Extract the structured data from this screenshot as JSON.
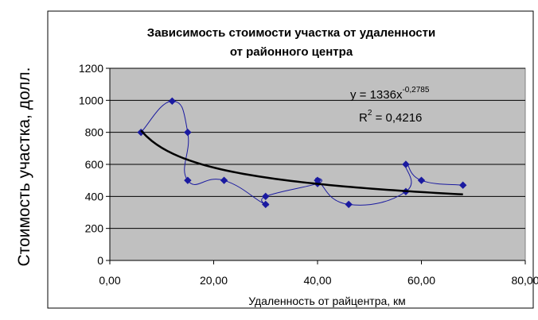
{
  "chart_data": {
    "type": "scatter",
    "title": [
      "Зависимость стоимости участка от удаленности",
      "от районного центра"
    ],
    "xlabel": "Удаленность от райцентра, км",
    "ylabel": "Стоимость участка, долл.",
    "xlim": [
      0,
      80
    ],
    "ylim": [
      0,
      1200
    ],
    "x_ticks": [
      0,
      20,
      40,
      60,
      80
    ],
    "x_tick_labels": [
      "0,00",
      "20,00",
      "40,00",
      "60,00",
      "80,00"
    ],
    "y_ticks": [
      0,
      200,
      400,
      600,
      800,
      1000,
      1200
    ],
    "y_tick_labels": [
      "0",
      "200",
      "400",
      "600",
      "800",
      "1000",
      "1200"
    ],
    "grid": true,
    "series": [
      {
        "type": "scatter-smooth",
        "color": "#1a1aa0",
        "x": [
          6,
          12,
          15,
          15,
          22,
          30,
          30,
          40,
          40,
          46,
          57,
          57,
          60,
          68
        ],
        "y": [
          800,
          995,
          800,
          500,
          500,
          350,
          400,
          480,
          500,
          350,
          430,
          600,
          500,
          470
        ]
      }
    ],
    "trendline": {
      "type": "power",
      "a": 1336,
      "b": -0.2785,
      "x_range": [
        6,
        68
      ],
      "color": "#000000",
      "equation_base": "y = 1336x",
      "equation_exponent": "-0,2785",
      "r2_prefix": "R",
      "r2_exponent": "2",
      "r2_suffix": " = 0,4216"
    },
    "plot_background": "#c0c0c0"
  }
}
